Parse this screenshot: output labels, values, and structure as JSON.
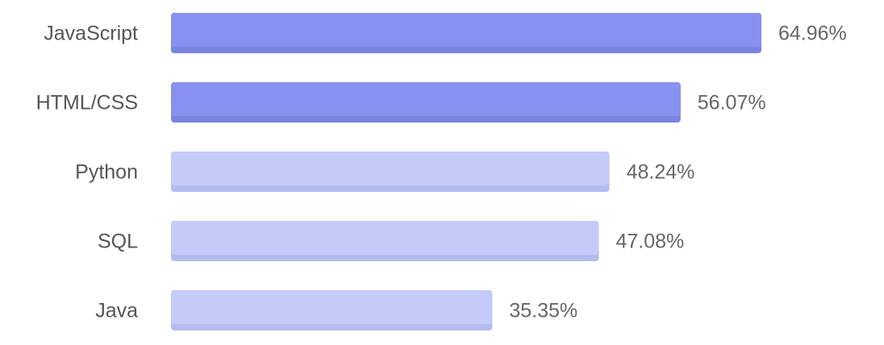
{
  "chart_data": {
    "type": "bar",
    "orientation": "horizontal",
    "categories": [
      "JavaScript",
      "HTML/CSS",
      "Python",
      "SQL",
      "Java"
    ],
    "values": [
      64.96,
      56.07,
      48.24,
      47.08,
      35.35
    ],
    "value_labels": [
      "64.96%",
      "56.07%",
      "48.24%",
      "47.08%",
      "35.35%"
    ],
    "colors": [
      "#8891ef",
      "#8891ef",
      "#c5cbf8",
      "#c5cbf8",
      "#c5cbf8"
    ],
    "shadow_colors": [
      "#7a83e0",
      "#7a83e0",
      "#b4bbef",
      "#b4bbef",
      "#b4bbef"
    ]
  }
}
